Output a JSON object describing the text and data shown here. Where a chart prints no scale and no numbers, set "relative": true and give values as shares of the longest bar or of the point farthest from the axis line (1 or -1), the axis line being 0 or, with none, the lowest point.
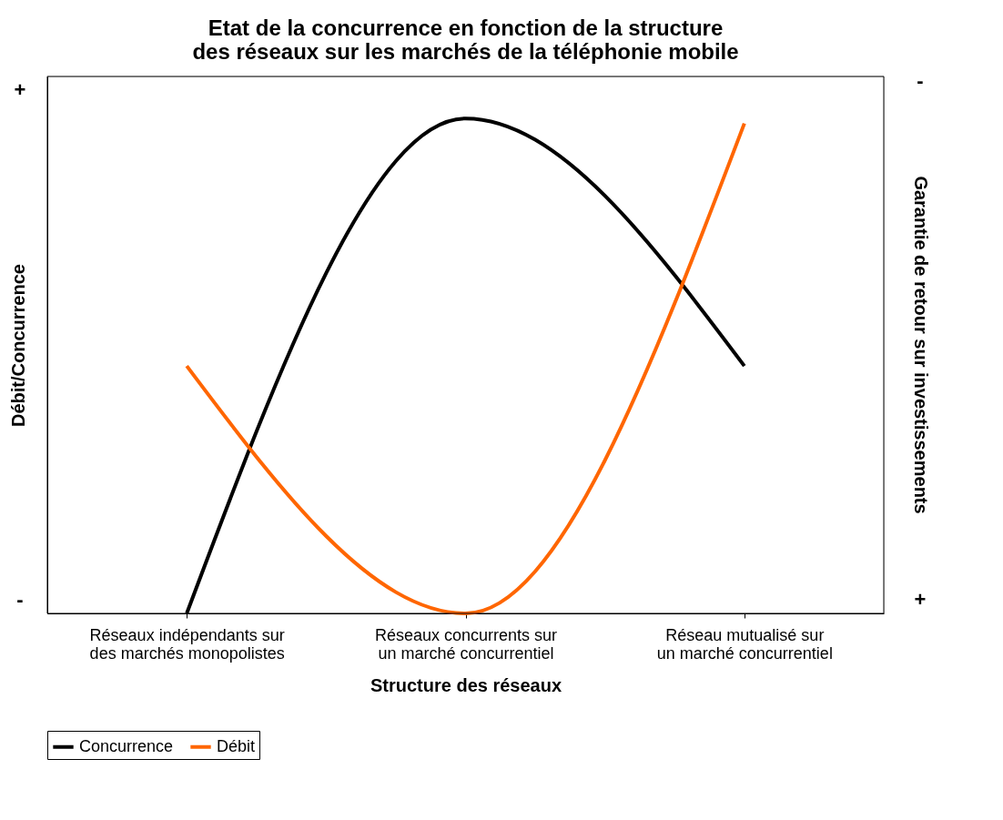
{
  "chart_data": {
    "type": "line",
    "title": "Etat de la concurrence en fonction de la structure des réseaux sur les marchés de la téléphonie mobile",
    "xlabel": "Structure des réseaux",
    "ylabel": "Débit/Concurrence",
    "y2label": "Garantie de retour sur investissements",
    "relative": true,
    "categories": [
      "Réseaux indépendants sur des marchés monopolistes",
      "Réseaux concurrents sur un marché concurrentiel",
      "Réseau mutualisé sur un marché concurrentiel"
    ],
    "series": [
      {
        "name": "Concurrence",
        "color": "#000000",
        "values": [
          0,
          1,
          0.5
        ]
      },
      {
        "name": "Débit",
        "color": "#ff6600",
        "values": [
          0.5,
          0,
          0.99
        ]
      }
    ],
    "annotations": [
      "+",
      "-",
      "-",
      "+"
    ],
    "legend": "bottom",
    "grid": false
  }
}
